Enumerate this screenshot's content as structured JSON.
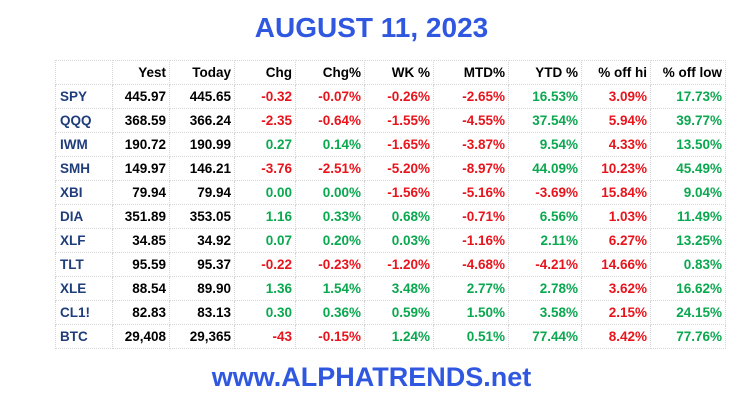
{
  "header": {
    "title": "AUGUST 11, 2023"
  },
  "table": {
    "columns": [
      "",
      "Yest",
      "Today",
      "Chg",
      "Chg%",
      "WK %",
      "MTD%",
      "YTD %",
      "% off hi",
      "% off low"
    ],
    "rows": [
      [
        "SPY",
        "445.97",
        "445.65",
        "-0.32",
        "-0.07%",
        "-0.26%",
        "-2.65%",
        "16.53%",
        "3.09%",
        "17.73%"
      ],
      [
        "QQQ",
        "368.59",
        "366.24",
        "-2.35",
        "-0.64%",
        "-1.55%",
        "-4.55%",
        "37.54%",
        "5.94%",
        "39.77%"
      ],
      [
        "IWM",
        "190.72",
        "190.99",
        "0.27",
        "0.14%",
        "-1.65%",
        "-3.87%",
        "9.54%",
        "4.33%",
        "13.50%"
      ],
      [
        "SMH",
        "149.97",
        "146.21",
        "-3.76",
        "-2.51%",
        "-5.20%",
        "-8.97%",
        "44.09%",
        "10.23%",
        "45.49%"
      ],
      [
        "XBI",
        "79.94",
        "79.94",
        "0.00",
        "0.00%",
        "-1.56%",
        "-5.16%",
        "-3.69%",
        "15.84%",
        "9.04%"
      ],
      [
        "DIA",
        "351.89",
        "353.05",
        "1.16",
        "0.33%",
        "0.68%",
        "-0.71%",
        "6.56%",
        "1.03%",
        "11.49%"
      ],
      [
        "XLF",
        "34.85",
        "34.92",
        "0.07",
        "0.20%",
        "0.03%",
        "-1.16%",
        "2.11%",
        "6.27%",
        "13.25%"
      ],
      [
        "TLT",
        "95.59",
        "95.37",
        "-0.22",
        "-0.23%",
        "-1.20%",
        "-4.68%",
        "-4.21%",
        "14.66%",
        "0.83%"
      ],
      [
        "XLE",
        "88.54",
        "89.90",
        "1.36",
        "1.54%",
        "3.48%",
        "2.77%",
        "2.78%",
        "3.62%",
        "16.62%"
      ],
      [
        "CL1!",
        "82.83",
        "83.13",
        "0.30",
        "0.36%",
        "0.59%",
        "1.50%",
        "3.58%",
        "2.15%",
        "24.15%"
      ],
      [
        "BTC",
        "29,408",
        "29,365",
        "-43",
        "-0.15%",
        "1.24%",
        "0.51%",
        "77.44%",
        "8.42%",
        "77.76%"
      ]
    ]
  },
  "footer": {
    "text": "www.ALPHATRENDS.net"
  }
}
